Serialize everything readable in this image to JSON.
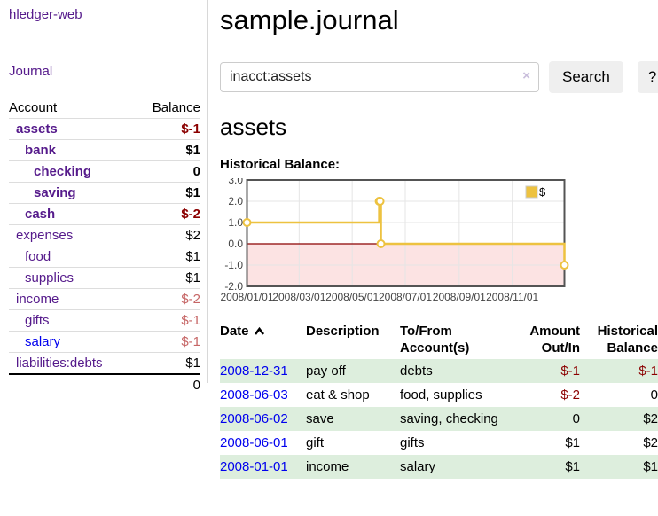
{
  "app": {
    "title": "hledger-web",
    "nav_journal": "Journal"
  },
  "sidebar": {
    "header": {
      "account": "Account",
      "balance": "Balance"
    },
    "accounts": [
      {
        "name": "assets",
        "indent": 1,
        "emph": true,
        "balance": "$-1",
        "tone": "neg"
      },
      {
        "name": "bank",
        "indent": 2,
        "emph": true,
        "balance": "$1",
        "tone": ""
      },
      {
        "name": "checking",
        "indent": 3,
        "emph": true,
        "balance": "0",
        "tone": ""
      },
      {
        "name": "saving",
        "indent": 3,
        "emph": true,
        "balance": "$1",
        "tone": ""
      },
      {
        "name": "cash",
        "indent": 2,
        "emph": true,
        "balance": "$-2",
        "tone": "neg"
      },
      {
        "name": "expenses",
        "indent": 1,
        "emph": false,
        "balance": "$2",
        "tone": ""
      },
      {
        "name": "food",
        "indent": 2,
        "emph": false,
        "balance": "$1",
        "tone": ""
      },
      {
        "name": "supplies",
        "indent": 2,
        "emph": false,
        "balance": "$1",
        "tone": ""
      },
      {
        "name": "income",
        "indent": 1,
        "emph": false,
        "balance": "$-2",
        "tone": "dim"
      },
      {
        "name": "gifts",
        "indent": 2,
        "emph": false,
        "balance": "$-1",
        "tone": "dim"
      },
      {
        "name": "salary",
        "indent": 2,
        "emph": false,
        "balance": "$-1",
        "tone": "dim",
        "link": "blue"
      },
      {
        "name": "liabilities:debts",
        "indent": 1,
        "emph": false,
        "balance": "$1",
        "tone": ""
      }
    ],
    "total": "0"
  },
  "main": {
    "title": "sample.journal",
    "search": {
      "value": "inacct:assets",
      "clear_glyph": "×",
      "button_label": "Search",
      "help_label": "?"
    },
    "account_heading": "assets",
    "chart_label": "Historical Balance:"
  },
  "chart_data": {
    "type": "line",
    "title": "Historical Balance",
    "series": [
      {
        "name": "$",
        "color": "#edc240",
        "steps": true,
        "points": [
          [
            "2008-01-01",
            1
          ],
          [
            "2008-06-01",
            2
          ],
          [
            "2008-06-02",
            2
          ],
          [
            "2008-06-03",
            0
          ],
          [
            "2008-12-31",
            -1
          ]
        ]
      }
    ],
    "xlim": [
      "2008-01-01",
      "2008-12-31"
    ],
    "ylim": [
      -2,
      3
    ],
    "x_ticks": [
      "2008/01/01",
      "2008/03/01",
      "2008/05/01",
      "2008/07/01",
      "2008/09/01",
      "2008/11/01"
    ],
    "y_ticks": [
      3.0,
      2.0,
      1.0,
      0.0,
      -1.0,
      -2.0
    ],
    "grid": true,
    "grid_color": "#e5e5e5",
    "border_color": "#545454",
    "zero_line_color": "#8b0000",
    "negative_region_color": "#fce3e3",
    "legend": {
      "position": "top-right",
      "label": "$"
    }
  },
  "register": {
    "columns": [
      "Date",
      "Description",
      "To/From Account(s)",
      "Amount Out/In",
      "Historical Balance"
    ],
    "rows": [
      {
        "date": "2008-12-31",
        "description": "pay off",
        "accounts": "debts",
        "amount": "$-1",
        "amount_tone": "neg",
        "balance": "$-1",
        "balance_tone": "neg"
      },
      {
        "date": "2008-06-03",
        "description": "eat & shop",
        "accounts": "food, supplies",
        "amount": "$-2",
        "amount_tone": "neg",
        "balance": "0",
        "balance_tone": ""
      },
      {
        "date": "2008-06-02",
        "description": "save",
        "accounts": "saving, checking",
        "amount": "0",
        "amount_tone": "",
        "balance": "$2",
        "balance_tone": ""
      },
      {
        "date": "2008-06-01",
        "description": "gift",
        "accounts": "gifts",
        "amount": "$1",
        "amount_tone": "",
        "balance": "$2",
        "balance_tone": ""
      },
      {
        "date": "2008-01-01",
        "description": "income",
        "accounts": "salary",
        "amount": "$1",
        "amount_tone": "",
        "balance": "$1",
        "balance_tone": ""
      }
    ]
  }
}
